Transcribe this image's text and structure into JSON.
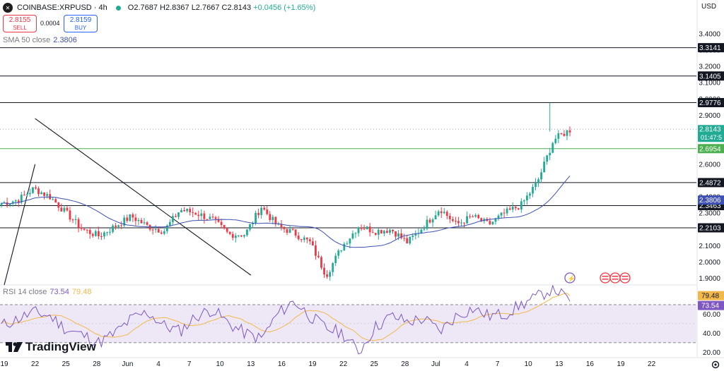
{
  "header": {
    "symbol": "COINBASE:XRPUSD · 4h",
    "open": "O2.7687",
    "high": "H2.8367",
    "low": "L2.7667",
    "close": "C2.8143",
    "change": "+0.0456 (+1.65%)"
  },
  "trade": {
    "sell_price": "2.8155",
    "sell_label": "SELL",
    "spread": "0.0004",
    "buy_price": "2.8159",
    "buy_label": "BUY"
  },
  "indicators": {
    "sma_label": "SMA 50 close",
    "sma_value": "2.3806",
    "rsi_label": "RSI 14 close",
    "rsi_value": "73.54",
    "rsi_ma_value": "79.48"
  },
  "axis_unit": "USD",
  "brand": "TradingView",
  "countdown": "01:47:5",
  "colors": {
    "up": "#22ab94",
    "down": "#f23645",
    "sma": "#3f51b5",
    "rsi": "#7e57c2",
    "rsi_ma": "#f2b84b",
    "green_level": "#4caf50",
    "rsi_band": "#ede7f6"
  },
  "chart_data": [
    {
      "type": "candlestick",
      "title": "",
      "ylabel": "USD",
      "ylim": [
        1.86,
        3.52
      ],
      "y_ticks": [
        1.9,
        2.0,
        2.1,
        2.2,
        2.3,
        2.4,
        2.5,
        2.6,
        2.7,
        2.8,
        2.9,
        3.0,
        3.1,
        3.2,
        3.3,
        3.4
      ],
      "y_tick_labels": [
        "1.9000",
        "2.0000",
        "2.1000",
        "2.2000",
        "2.3000",
        "2.4000",
        "2.5000",
        "2.6000",
        "2.7000",
        "2.8000",
        "2.9000",
        "3.0000",
        "3.1000",
        "3.2000",
        "3.3000",
        "3.4000"
      ],
      "x_tick_labels": [
        "19",
        "22",
        "25",
        "28",
        "Jun",
        "4",
        "7",
        "10",
        "13",
        "16",
        "19",
        "22",
        "25",
        "28",
        "Jul",
        "4",
        "7",
        "10",
        "13",
        "16",
        "19",
        "22"
      ],
      "horizontal_levels": [
        {
          "value": 3.3141,
          "label": "3.3141",
          "style": "solid"
        },
        {
          "value": 3.1405,
          "label": "3.1405",
          "style": "solid"
        },
        {
          "value": 2.9776,
          "label": "2.9776",
          "style": "solid"
        },
        {
          "value": 2.4872,
          "label": "2.4872",
          "style": "solid"
        },
        {
          "value": 2.3463,
          "label": "2.3463",
          "style": "solid"
        },
        {
          "value": 2.2103,
          "label": "2.2103",
          "style": "solid"
        },
        {
          "value": 2.6954,
          "label": "2.6954",
          "style": "solid-green"
        },
        {
          "value": 2.8143,
          "label": "2.8143",
          "style": "dotted-last"
        }
      ],
      "sma_label_value": 2.3806,
      "channel_lines": [
        {
          "from": [
            "13",
            1.92
          ],
          "to": [
            "22",
            2.88
          ]
        },
        {
          "from": [
            "19",
            1.86
          ],
          "to": [
            "22",
            2.6
          ]
        }
      ],
      "price_path_approx": [
        2.36,
        2.38,
        2.45,
        2.4,
        2.3,
        2.2,
        2.16,
        2.22,
        2.28,
        2.22,
        2.19,
        2.32,
        2.3,
        2.26,
        2.17,
        2.17,
        2.34,
        2.22,
        2.18,
        2.12,
        1.92,
        2.1,
        2.22,
        2.19,
        2.2,
        2.12,
        2.22,
        2.33,
        2.23,
        2.28,
        2.23,
        2.3,
        2.35,
        2.49,
        2.75,
        2.81
      ]
    },
    {
      "type": "line",
      "title": "RSI 14 close",
      "ylim": [
        15,
        90
      ],
      "y_ticks": [
        20,
        40,
        60
      ],
      "y_tick_labels": [
        "20.00",
        "40.00",
        "60.00"
      ],
      "bands": [
        30,
        70
      ],
      "series": [
        {
          "name": "RSI",
          "last": 73.54
        },
        {
          "name": "RSI MA",
          "last": 79.48
        }
      ],
      "rsi_path_approx": [
        48,
        55,
        62,
        58,
        44,
        38,
        30,
        40,
        55,
        62,
        48,
        42,
        58,
        65,
        50,
        40,
        34,
        60,
        74,
        58,
        45,
        40,
        20,
        46,
        58,
        52,
        55,
        42,
        58,
        66,
        58,
        60,
        70,
        78,
        88,
        73
      ]
    }
  ]
}
